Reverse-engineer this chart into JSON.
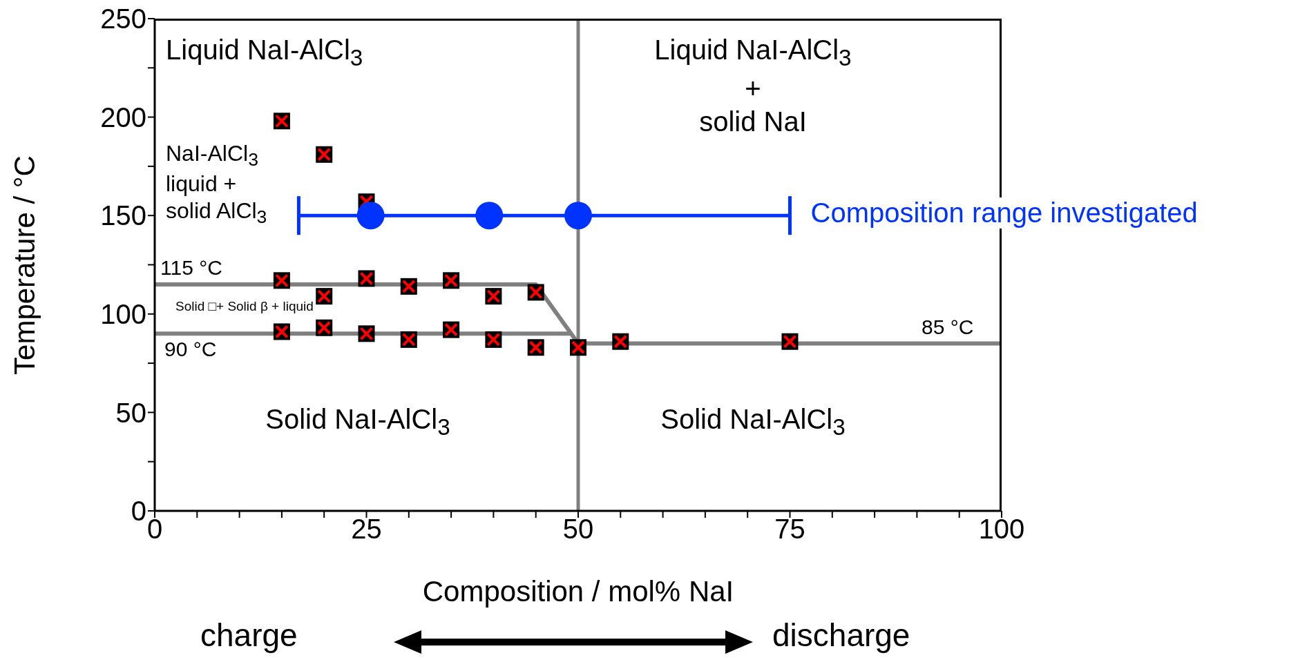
{
  "chart_data": {
    "type": "scatter",
    "xlabel": "Composition / mol% NaI",
    "ylabel": "Temperature / °C",
    "xlim": [
      0,
      100
    ],
    "ylim": [
      0,
      250
    ],
    "xticks": [
      0,
      {
        "value": 5,
        "label": null
      },
      {
        "value": 10,
        "label": null
      },
      {
        "value": 15,
        "label": null
      },
      {
        "value": 20,
        "label": null
      },
      25,
      {
        "value": 30,
        "label": null
      },
      {
        "value": 35,
        "label": null
      },
      {
        "value": 40,
        "label": null
      },
      {
        "value": 45,
        "label": null
      },
      50,
      {
        "value": 55,
        "label": null
      },
      {
        "value": 60,
        "label": null
      },
      {
        "value": 65,
        "label": null
      },
      {
        "value": 70,
        "label": null
      },
      75,
      {
        "value": 80,
        "label": null
      },
      {
        "value": 85,
        "label": null
      },
      {
        "value": 90,
        "label": null
      },
      {
        "value": 95,
        "label": null
      },
      100
    ],
    "yticks": [
      0,
      {
        "value": 25,
        "label": null
      },
      50,
      {
        "value": 75,
        "label": null
      },
      100,
      {
        "value": 125,
        "label": null
      },
      150,
      {
        "value": 175,
        "label": null
      },
      200,
      {
        "value": 225,
        "label": null
      },
      250
    ],
    "grid": false,
    "legend": "right",
    "series": [
      {
        "color": "#ff0000",
        "marker": "cross",
        "x": [
          15,
          20,
          25,
          15,
          20,
          25,
          30,
          35,
          40,
          45,
          15,
          20,
          25,
          30,
          35,
          40,
          45,
          50,
          55,
          75
        ],
        "values": [
          198,
          181,
          157,
          117,
          109,
          118,
          114,
          117,
          109,
          111,
          91,
          93,
          90,
          87,
          92,
          87,
          83,
          83,
          86,
          86
        ]
      },
      {
        "type": "line",
        "color": "#808080",
        "marker": "none",
        "x": [
          0,
          45,
          50
        ],
        "values": [
          115,
          115,
          85
        ]
      },
      {
        "type": "line",
        "color": "#808080",
        "marker": "none",
        "x": [
          0,
          49.2
        ],
        "values": [
          90,
          90
        ]
      },
      {
        "type": "line",
        "color": "#808080",
        "marker": "none",
        "x": [
          50,
          100
        ],
        "values": [
          85,
          85
        ]
      },
      {
        "type": "line",
        "name": "Composition range investigated",
        "color": "#0033ff",
        "x": [
          17,
          75
        ],
        "values": [
          150,
          150
        ]
      },
      {
        "color": "#0033ff",
        "marker": "circle",
        "x": [
          25.5,
          39.5,
          50
        ],
        "values": [
          150,
          150,
          150
        ]
      }
    ],
    "ref_lines": [
      {
        "axis": "x",
        "value": 50,
        "color": "#808080"
      }
    ],
    "annotations": [
      "Liquid NaI-AlCl$_{3}$",
      "Liquid NaI-AlCl$_{3}$\n+\nsolid NaI",
      "NaI-AlCl$_{3}$\nliquid +\nsolid AlCl$_{3}$",
      "Solid □+ Solid β + liquid",
      "Solid NaI-AlCl$_{3}$",
      "Solid NaI-AlCl$_{3}$",
      "115 °C",
      "90 °C",
      "85 °C",
      "charge",
      "discharge"
    ]
  }
}
